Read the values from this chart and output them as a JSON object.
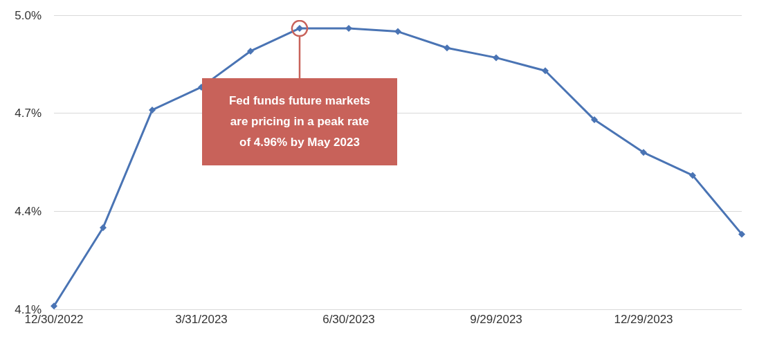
{
  "chart_data": {
    "type": "line",
    "categories": [
      "12/30/2022",
      null,
      null,
      "3/31/2023",
      null,
      null,
      "6/30/2023",
      null,
      null,
      "9/29/2023",
      null,
      null,
      "12/29/2023",
      null,
      null
    ],
    "series": [
      {
        "color": "#4a74b4",
        "values": [
          4.11,
          4.35,
          4.71,
          4.78,
          4.89,
          4.96,
          4.96,
          4.95,
          4.9,
          4.87,
          4.83,
          4.68,
          4.58,
          4.51,
          4.33
        ]
      }
    ],
    "ylim": [
      4.1,
      5.0
    ],
    "yticks": [
      {
        "value": 4.1,
        "label": "4.1%"
      },
      {
        "value": 4.4,
        "label": "4.4%"
      },
      {
        "value": 4.7,
        "label": "4.7%"
      },
      {
        "value": 5.0,
        "label": "5.0%"
      }
    ],
    "grid": "y",
    "marker": "diamond",
    "line_style": "solid",
    "annotations": [
      "Fed funds future markets\nare pricing in a peak rate\nof 4.96% by May 2023"
    ]
  }
}
